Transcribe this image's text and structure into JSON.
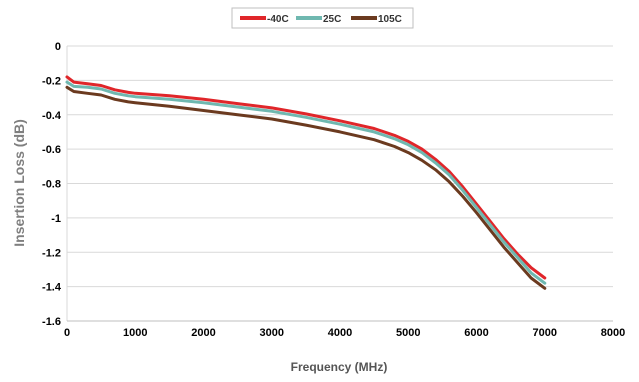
{
  "chart_data": {
    "type": "line",
    "title": "",
    "xlabel": "Frequency (MHz)",
    "ylabel": "Insertion Loss (dB)",
    "xlim": [
      0,
      8000
    ],
    "ylim": [
      -1.6,
      0
    ],
    "x_ticks": [
      0,
      1000,
      2000,
      3000,
      4000,
      5000,
      6000,
      7000,
      8000
    ],
    "x_tick_labels": [
      "0",
      "1000",
      "2000",
      "3000",
      "4000",
      "5000",
      "6000",
      "7000",
      "8000"
    ],
    "y_ticks": [
      0,
      -0.2,
      -0.4,
      -0.6,
      -0.8,
      -1,
      -1.2,
      -1.4,
      -1.6
    ],
    "y_tick_labels": [
      "0",
      "-0.2",
      "-0.4",
      "-0.6",
      "-0.8",
      "-1",
      "-1.2",
      "-1.4",
      "-1.6"
    ],
    "grid": "horizontal",
    "legend_position": "top-center",
    "series": [
      {
        "name": "-40C",
        "color": "#e0262a",
        "x": [
          0,
          100,
          300,
          500,
          700,
          900,
          1000,
          1500,
          2000,
          2500,
          3000,
          3500,
          4000,
          4500,
          4800,
          5000,
          5200,
          5400,
          5600,
          5800,
          6000,
          6200,
          6400,
          6600,
          6800,
          7000
        ],
        "y": [
          -0.18,
          -0.21,
          -0.22,
          -0.23,
          -0.255,
          -0.27,
          -0.275,
          -0.29,
          -0.31,
          -0.335,
          -0.36,
          -0.395,
          -0.435,
          -0.48,
          -0.52,
          -0.555,
          -0.6,
          -0.66,
          -0.73,
          -0.82,
          -0.92,
          -1.02,
          -1.12,
          -1.21,
          -1.29,
          -1.35
        ]
      },
      {
        "name": "25C",
        "color": "#6fb8b0",
        "x": [
          0,
          100,
          300,
          500,
          700,
          900,
          1000,
          1500,
          2000,
          2500,
          3000,
          3500,
          4000,
          4500,
          4800,
          5000,
          5200,
          5400,
          5600,
          5800,
          6000,
          6200,
          6400,
          6600,
          6800,
          7000
        ],
        "y": [
          -0.21,
          -0.235,
          -0.24,
          -0.25,
          -0.275,
          -0.29,
          -0.295,
          -0.31,
          -0.33,
          -0.355,
          -0.38,
          -0.415,
          -0.455,
          -0.5,
          -0.54,
          -0.575,
          -0.62,
          -0.68,
          -0.75,
          -0.84,
          -0.94,
          -1.04,
          -1.14,
          -1.23,
          -1.32,
          -1.38
        ]
      },
      {
        "name": "105C",
        "color": "#6b3a1f",
        "x": [
          0,
          100,
          300,
          500,
          700,
          900,
          1000,
          1500,
          2000,
          2500,
          3000,
          3500,
          4000,
          4500,
          4800,
          5000,
          5200,
          5400,
          5600,
          5800,
          6000,
          6200,
          6400,
          6600,
          6800,
          7000
        ],
        "y": [
          -0.24,
          -0.265,
          -0.275,
          -0.285,
          -0.31,
          -0.325,
          -0.33,
          -0.35,
          -0.375,
          -0.4,
          -0.425,
          -0.46,
          -0.5,
          -0.545,
          -0.585,
          -0.62,
          -0.665,
          -0.72,
          -0.79,
          -0.875,
          -0.97,
          -1.07,
          -1.17,
          -1.26,
          -1.35,
          -1.41
        ]
      }
    ]
  }
}
